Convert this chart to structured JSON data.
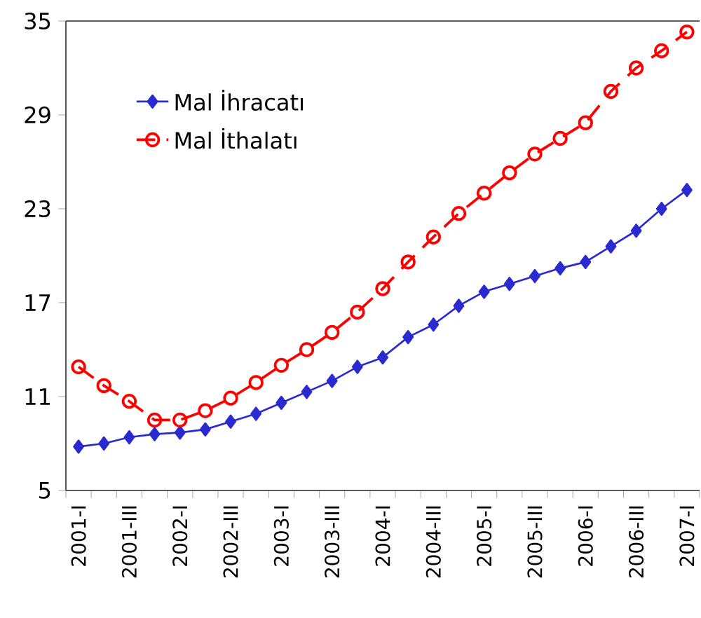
{
  "chart_data": {
    "type": "line",
    "categories": [
      "2001-I",
      null,
      "2001-III",
      null,
      "2002-I",
      null,
      "2002-III",
      null,
      "2003-I",
      null,
      "2003-III",
      null,
      "2004-I",
      null,
      "2004-III",
      null,
      "2005-I",
      null,
      "2005-III",
      null,
      "2006-I",
      null,
      "2006-III",
      null,
      "2007-I"
    ],
    "series": [
      {
        "name": "Mal İhracatı",
        "color": "#2a2ad0",
        "marker": "diamond",
        "line_style": "solid",
        "values": [
          7.8,
          8.0,
          8.4,
          8.6,
          8.7,
          8.9,
          9.4,
          9.9,
          10.6,
          11.3,
          12.0,
          12.9,
          13.5,
          14.8,
          15.6,
          16.8,
          17.7,
          18.2,
          18.7,
          19.2,
          19.6,
          20.6,
          21.6,
          23.0,
          24.2
        ]
      },
      {
        "name": "Mal İthalatı",
        "color": "#ff0000",
        "marker": "circle",
        "line_style": "dashed",
        "values": [
          12.9,
          11.7,
          10.7,
          9.5,
          9.5,
          10.1,
          10.9,
          11.9,
          13.0,
          14.0,
          15.1,
          16.4,
          17.9,
          19.6,
          21.2,
          22.7,
          24.0,
          25.3,
          26.5,
          27.5,
          28.5,
          30.5,
          32.0,
          33.1,
          34.3
        ]
      }
    ],
    "ylim": [
      5,
      35
    ],
    "yticks": [
      5,
      11,
      17,
      23,
      29,
      35
    ],
    "grid": false,
    "legend": "top left"
  }
}
